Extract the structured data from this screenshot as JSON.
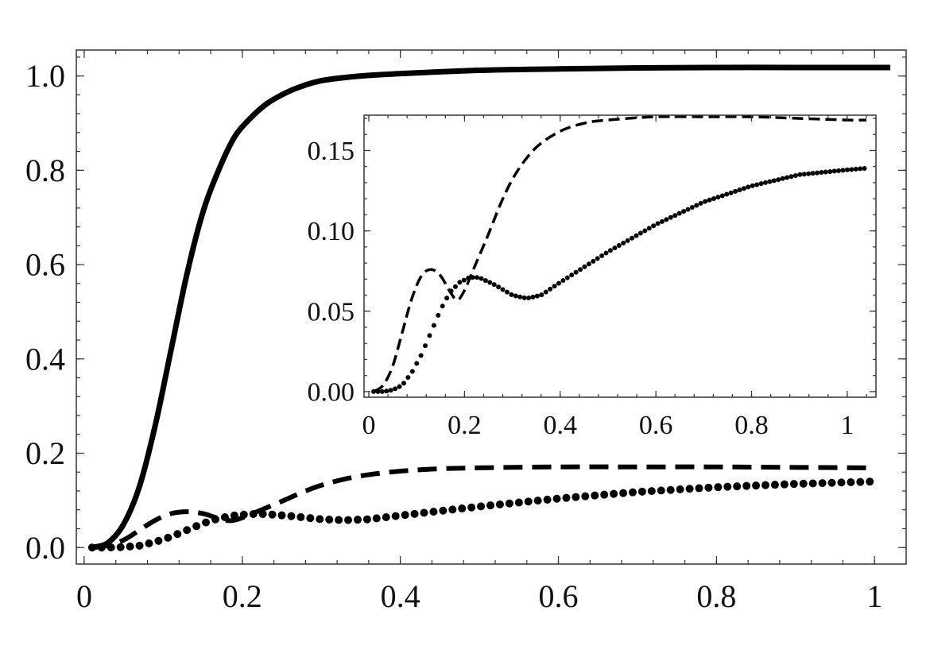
{
  "chart_data": [
    {
      "id": "main",
      "type": "line",
      "title": "",
      "xlabel": "",
      "ylabel": "",
      "xlim": [
        -0.01,
        1.04
      ],
      "ylim": [
        -0.035,
        1.055
      ],
      "x_ticks": [
        {
          "value": 0,
          "label": "0"
        },
        {
          "value": 0.2,
          "label": "0.2"
        },
        {
          "value": 0.4,
          "label": "0.4"
        },
        {
          "value": 0.6,
          "label": "0.6"
        },
        {
          "value": 0.8,
          "label": "0.8"
        },
        {
          "value": 1.0,
          "label": "1"
        }
      ],
      "y_ticks": [
        {
          "value": 0.0,
          "label": "0.0"
        },
        {
          "value": 0.2,
          "label": "0.2"
        },
        {
          "value": 0.4,
          "label": "0.4"
        },
        {
          "value": 0.6,
          "label": "0.6"
        },
        {
          "value": 0.8,
          "label": "0.8"
        },
        {
          "value": 1.0,
          "label": "1.0"
        }
      ],
      "grid": false,
      "legend": "none",
      "series": [
        {
          "style": "solid",
          "color": "#000000",
          "x": [
            0.01,
            0.03,
            0.05,
            0.07,
            0.09,
            0.11,
            0.13,
            0.15,
            0.17,
            0.19,
            0.21,
            0.23,
            0.25,
            0.27,
            0.3,
            0.35,
            0.4,
            0.5,
            0.6,
            0.7,
            0.8,
            0.9,
            1.0,
            1.02
          ],
          "y": [
            0.0,
            0.01,
            0.05,
            0.13,
            0.26,
            0.42,
            0.58,
            0.71,
            0.8,
            0.87,
            0.91,
            0.94,
            0.96,
            0.975,
            0.99,
            1.0,
            1.005,
            1.012,
            1.015,
            1.017,
            1.018,
            1.018,
            1.018,
            1.018
          ]
        },
        {
          "style": "dashed",
          "color": "#000000",
          "x": [
            0.01,
            0.03,
            0.05,
            0.07,
            0.09,
            0.11,
            0.13,
            0.15,
            0.17,
            0.185,
            0.2,
            0.22,
            0.25,
            0.28,
            0.31,
            0.35,
            0.4,
            0.45,
            0.5,
            0.6,
            0.7,
            0.8,
            0.9,
            1.0
          ],
          "y": [
            0.0,
            0.004,
            0.016,
            0.037,
            0.058,
            0.072,
            0.076,
            0.072,
            0.062,
            0.057,
            0.063,
            0.077,
            0.098,
            0.12,
            0.137,
            0.152,
            0.162,
            0.167,
            0.169,
            0.171,
            0.171,
            0.171,
            0.17,
            0.169
          ]
        },
        {
          "style": "dotted",
          "color": "#000000",
          "x": [
            0.01,
            0.03,
            0.05,
            0.07,
            0.09,
            0.11,
            0.13,
            0.15,
            0.17,
            0.19,
            0.21,
            0.23,
            0.26,
            0.3,
            0.33,
            0.36,
            0.4,
            0.5,
            0.6,
            0.7,
            0.8,
            0.9,
            1.0
          ],
          "y": [
            0.0,
            0.0,
            0.001,
            0.004,
            0.012,
            0.023,
            0.037,
            0.051,
            0.062,
            0.068,
            0.071,
            0.071,
            0.067,
            0.06,
            0.058,
            0.06,
            0.068,
            0.087,
            0.104,
            0.118,
            0.128,
            0.135,
            0.14
          ]
        }
      ]
    },
    {
      "id": "inset",
      "type": "line",
      "title": "",
      "xlabel": "",
      "ylabel": "",
      "xlim": [
        -0.01,
        1.06
      ],
      "ylim": [
        -0.0035,
        0.172
      ],
      "x_ticks": [
        {
          "value": 0,
          "label": "0"
        },
        {
          "value": 0.2,
          "label": "0.2"
        },
        {
          "value": 0.4,
          "label": "0.4"
        },
        {
          "value": 0.6,
          "label": "0.6"
        },
        {
          "value": 0.8,
          "label": "0.8"
        },
        {
          "value": 1.0,
          "label": "1"
        }
      ],
      "y_ticks": [
        {
          "value": 0.0,
          "label": "0.00"
        },
        {
          "value": 0.05,
          "label": "0.05"
        },
        {
          "value": 0.1,
          "label": "0.10"
        },
        {
          "value": 0.15,
          "label": "0.15"
        }
      ],
      "grid": false,
      "legend": "none",
      "series": [
        {
          "style": "dashed",
          "color": "#000000",
          "x": [
            0.01,
            0.03,
            0.05,
            0.07,
            0.09,
            0.11,
            0.13,
            0.15,
            0.17,
            0.185,
            0.2,
            0.22,
            0.25,
            0.28,
            0.31,
            0.35,
            0.4,
            0.45,
            0.5,
            0.6,
            0.7,
            0.8,
            0.9,
            1.0,
            1.04
          ],
          "y": [
            0.0,
            0.004,
            0.016,
            0.037,
            0.058,
            0.072,
            0.076,
            0.072,
            0.062,
            0.057,
            0.063,
            0.077,
            0.098,
            0.12,
            0.137,
            0.152,
            0.162,
            0.167,
            0.169,
            0.171,
            0.171,
            0.171,
            0.17,
            0.169,
            0.169
          ]
        },
        {
          "style": "dotted",
          "color": "#000000",
          "x": [
            0.01,
            0.03,
            0.05,
            0.07,
            0.09,
            0.11,
            0.13,
            0.15,
            0.17,
            0.19,
            0.21,
            0.23,
            0.26,
            0.3,
            0.33,
            0.36,
            0.4,
            0.5,
            0.6,
            0.7,
            0.8,
            0.9,
            1.0,
            1.04
          ],
          "y": [
            0.0,
            0.0,
            0.001,
            0.004,
            0.012,
            0.023,
            0.037,
            0.051,
            0.062,
            0.068,
            0.071,
            0.071,
            0.067,
            0.06,
            0.058,
            0.06,
            0.068,
            0.087,
            0.104,
            0.118,
            0.128,
            0.135,
            0.138,
            0.139
          ]
        }
      ]
    }
  ]
}
